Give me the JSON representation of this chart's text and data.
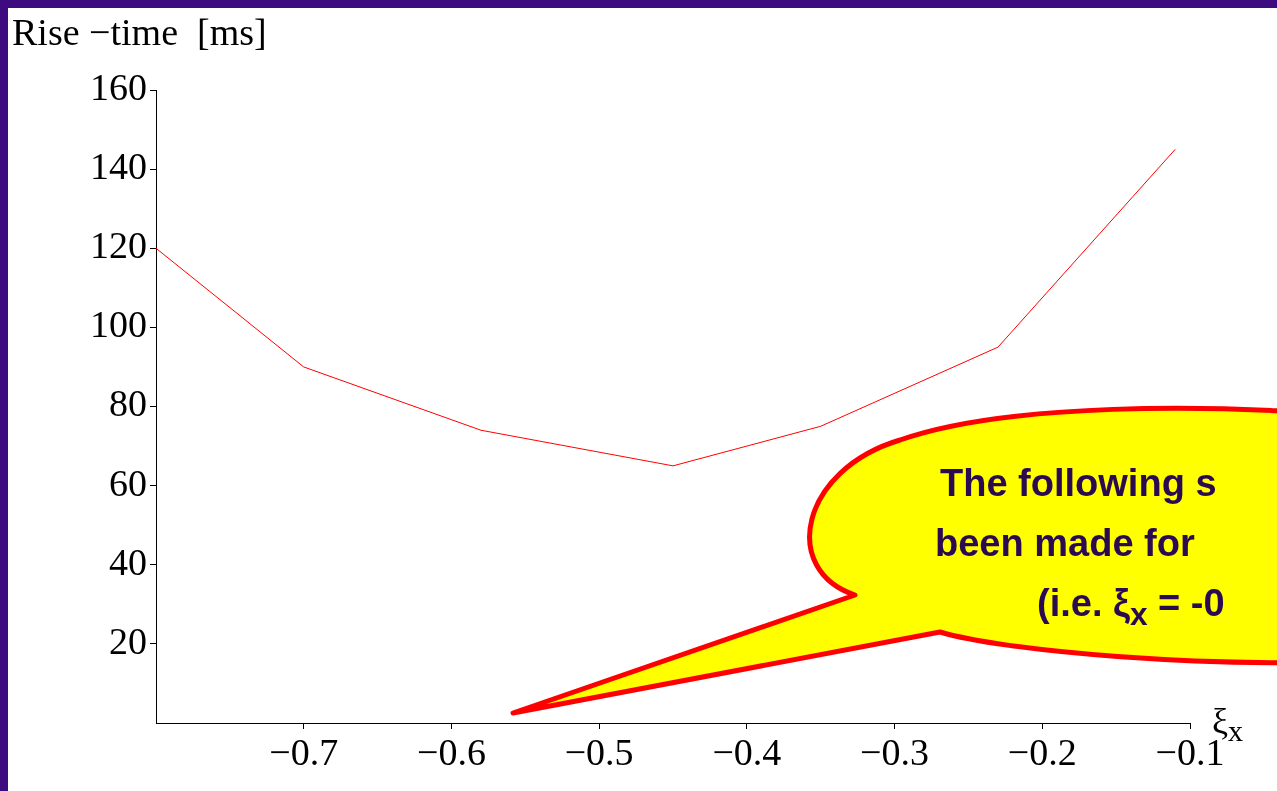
{
  "chart_data": {
    "type": "line",
    "ylabel": "Rise −time  [ms]",
    "xlabel": "ξ$_{x}$",
    "x": [
      -0.8,
      -0.7,
      -0.58,
      -0.45,
      -0.35,
      -0.23,
      -0.11
    ],
    "series": [
      {
        "color": "#ff0000",
        "values": [
          120,
          90,
          74,
          65,
          75,
          95,
          145
        ]
      }
    ],
    "xlim": [
      -0.8,
      -0.1
    ],
    "xticks": [
      {
        "value": -0.7,
        "label": "−0.7"
      },
      {
        "value": -0.6,
        "label": "−0.6"
      },
      {
        "value": -0.5,
        "label": "−0.5"
      },
      {
        "value": -0.4,
        "label": "−0.4"
      },
      {
        "value": -0.3,
        "label": "−0.3"
      },
      {
        "value": -0.2,
        "label": "−0.2"
      },
      {
        "value": -0.1,
        "label": "−0.1"
      }
    ],
    "ylim": [
      0,
      160
    ],
    "yticks": [
      20,
      40,
      60,
      80,
      100,
      120,
      140,
      160
    ],
    "grid": false,
    "legend": false,
    "marker": "none",
    "line_style": "solid",
    "annotations": [
      "The following s",
      "been made for",
      "(i.e. ξ$_{x}$ = -0"
    ]
  }
}
